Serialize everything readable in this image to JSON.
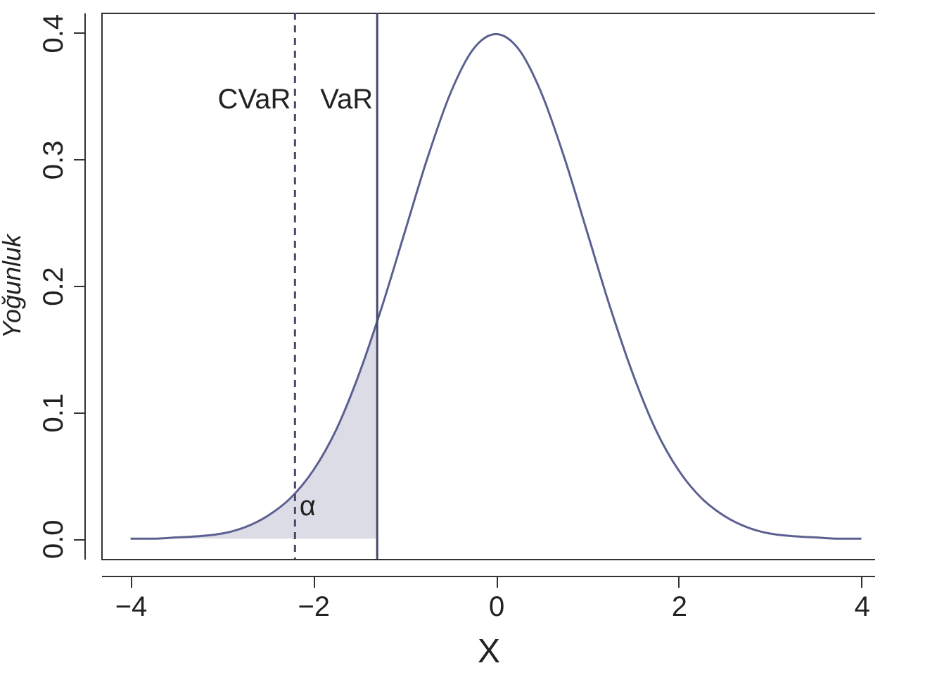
{
  "chart_data": {
    "type": "line",
    "xlabel": "X",
    "ylabel": "Yoğunluk",
    "xlim": [
      -4.32,
      4.15
    ],
    "ylim": [
      -0.016,
      0.416
    ],
    "xticks": [
      {
        "value": -4,
        "label": "−4"
      },
      {
        "value": -2,
        "label": "−2"
      },
      0,
      2,
      4
    ],
    "yticks": [
      {
        "value": 0,
        "label": "0.0"
      },
      0.1,
      0.2,
      0.3,
      0.4
    ],
    "grid": false,
    "marker": "none",
    "series": [
      {
        "type": "area",
        "color": "#dcdce6",
        "x": [
          -4,
          -3.75,
          -3.5,
          -3.25,
          -3,
          -2.75,
          -2.5,
          -2.25,
          -2,
          -1.75,
          -1.5,
          -1.3
        ],
        "values": [
          0.0,
          0.0,
          0.001,
          0.002,
          0.004,
          0.009,
          0.018,
          0.032,
          0.054,
          0.086,
          0.13,
          0.171
        ]
      },
      {
        "color": "#5c6090",
        "line_style": "solid",
        "x": [
          -4,
          -3.75,
          -3.5,
          -3.25,
          -3,
          -2.75,
          -2.5,
          -2.25,
          -2,
          -1.75,
          -1.5,
          -1.25,
          -1,
          -0.75,
          -0.5,
          -0.25,
          0,
          0.25,
          0.5,
          0.75,
          1,
          1.25,
          1.5,
          1.75,
          2,
          2.25,
          2.5,
          2.75,
          3,
          3.25,
          3.5,
          3.75,
          4
        ],
        "values": [
          0.0,
          0.0,
          0.001,
          0.002,
          0.004,
          0.009,
          0.018,
          0.032,
          0.054,
          0.086,
          0.13,
          0.183,
          0.242,
          0.301,
          0.352,
          0.387,
          0.399,
          0.387,
          0.352,
          0.301,
          0.242,
          0.183,
          0.13,
          0.086,
          0.054,
          0.032,
          0.018,
          0.009,
          0.004,
          0.002,
          0.001,
          0.0,
          0.0
        ]
      }
    ],
    "ref_lines": [
      {
        "axis": "x",
        "value": -2.2,
        "label": "CVaR",
        "line_style": "dashed",
        "color": "#444a6a"
      },
      {
        "axis": "x",
        "value": -1.3,
        "label": "VaR",
        "line_style": "solid",
        "color": "#444a6a"
      }
    ],
    "annotations": [
      "α"
    ]
  }
}
